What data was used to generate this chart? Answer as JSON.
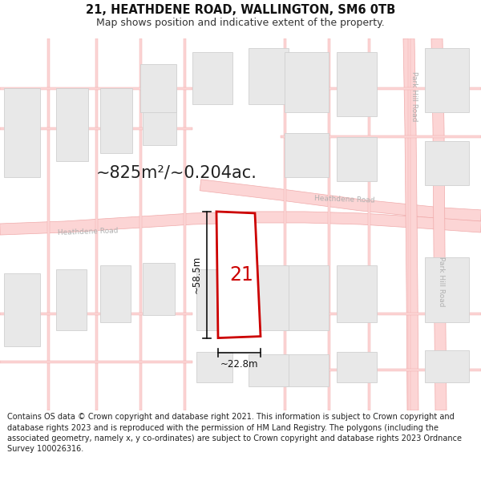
{
  "title": "21, HEATHDENE ROAD, WALLINGTON, SM6 0TB",
  "subtitle": "Map shows position and indicative extent of the property.",
  "area_text": "~825m²/~0.204ac.",
  "label_21": "21",
  "dim_width": "~22.8m",
  "dim_height": "~58.5m",
  "footer": "Contains OS data © Crown copyright and database right 2021. This information is subject to Crown copyright and database rights 2023 and is reproduced with the permission of HM Land Registry. The polygons (including the associated geometry, namely x, y co-ordinates) are subject to Crown copyright and database rights 2023 Ordnance Survey 100026316.",
  "bg_color": "#ffffff",
  "map_bg": "#ffffff",
  "road_color": "#fcd5d5",
  "road_edge_color": "#f0aaaa",
  "plot_fill": "#ffffff",
  "plot_border": "#cc0000",
  "building_fill": "#e8e8e8",
  "building_border": "#d0d0d0",
  "road_label_color": "#b0b0b0",
  "dim_color": "#111111",
  "title_fontsize": 10.5,
  "subtitle_fontsize": 9,
  "area_fontsize": 15,
  "label_fontsize": 17,
  "dim_fontsize": 8.5,
  "road_label_fontsize": 6.5,
  "footer_fontsize": 7
}
